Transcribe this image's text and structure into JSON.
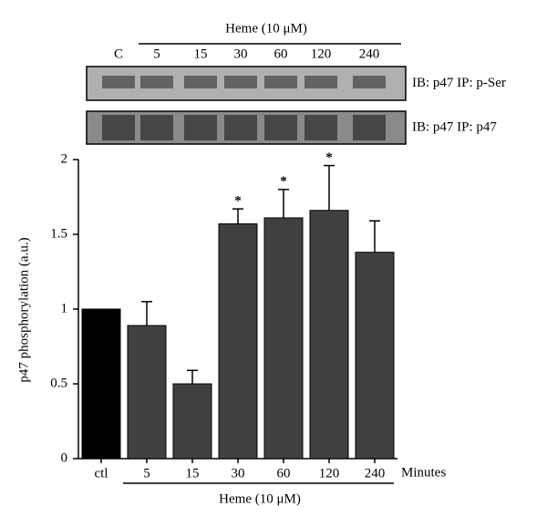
{
  "chart_data": {
    "type": "bar",
    "y_label": "p47 phosphorylation (a.u.)",
    "x_label": "Minutes",
    "treatment": "Heme (10 μM)",
    "categories": [
      "ctl",
      "5",
      "15",
      "30",
      "60",
      "120",
      "240"
    ],
    "values": [
      1.0,
      0.89,
      0.5,
      1.57,
      1.61,
      1.66,
      1.38
    ],
    "errors": [
      null,
      0.16,
      0.09,
      0.1,
      0.19,
      0.3,
      0.21
    ],
    "significance": [
      null,
      null,
      null,
      "*",
      "*",
      "*",
      null
    ],
    "colors": [
      "#000000",
      "#404040",
      "#404040",
      "#404040",
      "#404040",
      "#404040",
      "#404040"
    ],
    "ylim": [
      0,
      2
    ],
    "yticks": [
      0,
      0.5,
      1,
      1.5,
      2
    ],
    "blot": {
      "lanes": [
        "C",
        "5",
        "15",
        "30",
        "60",
        "120",
        "240"
      ],
      "rows": [
        "IB: p47 IP: p-Ser",
        "IB: p47 IP: p47"
      ]
    }
  }
}
